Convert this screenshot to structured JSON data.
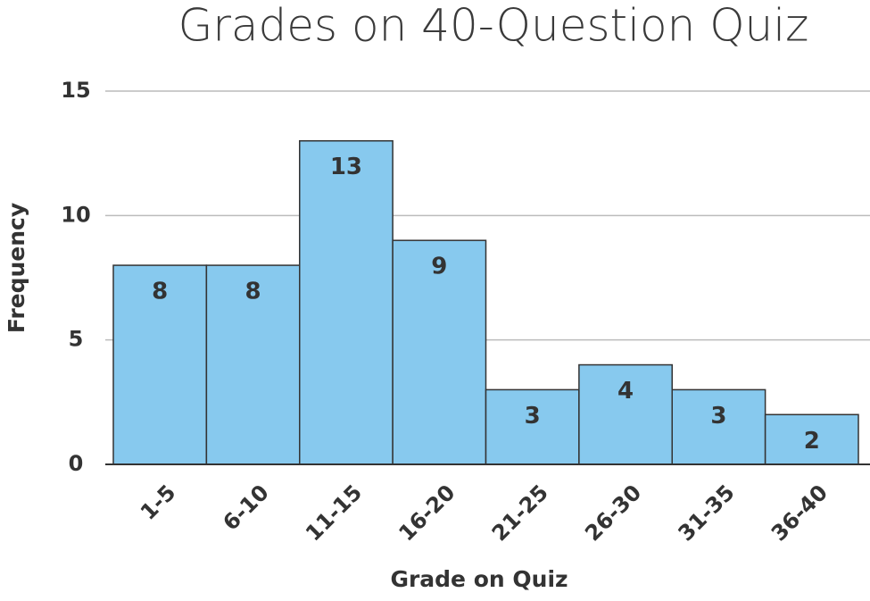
{
  "chart_data": {
    "type": "bar",
    "title": "Grades on 40-Question Quiz",
    "x_label": "Grade on Quiz",
    "y_label": "Frequency",
    "categories": [
      "1-5",
      "6-10",
      "11-15",
      "16-20",
      "21-25",
      "26-30",
      "31-35",
      "36-40"
    ],
    "values": [
      8,
      8,
      13,
      9,
      3,
      4,
      3,
      2
    ],
    "color": "#87c9ee",
    "ylim": [
      0,
      15
    ],
    "yticks": [
      0,
      5,
      10,
      15
    ],
    "grid": true
  }
}
